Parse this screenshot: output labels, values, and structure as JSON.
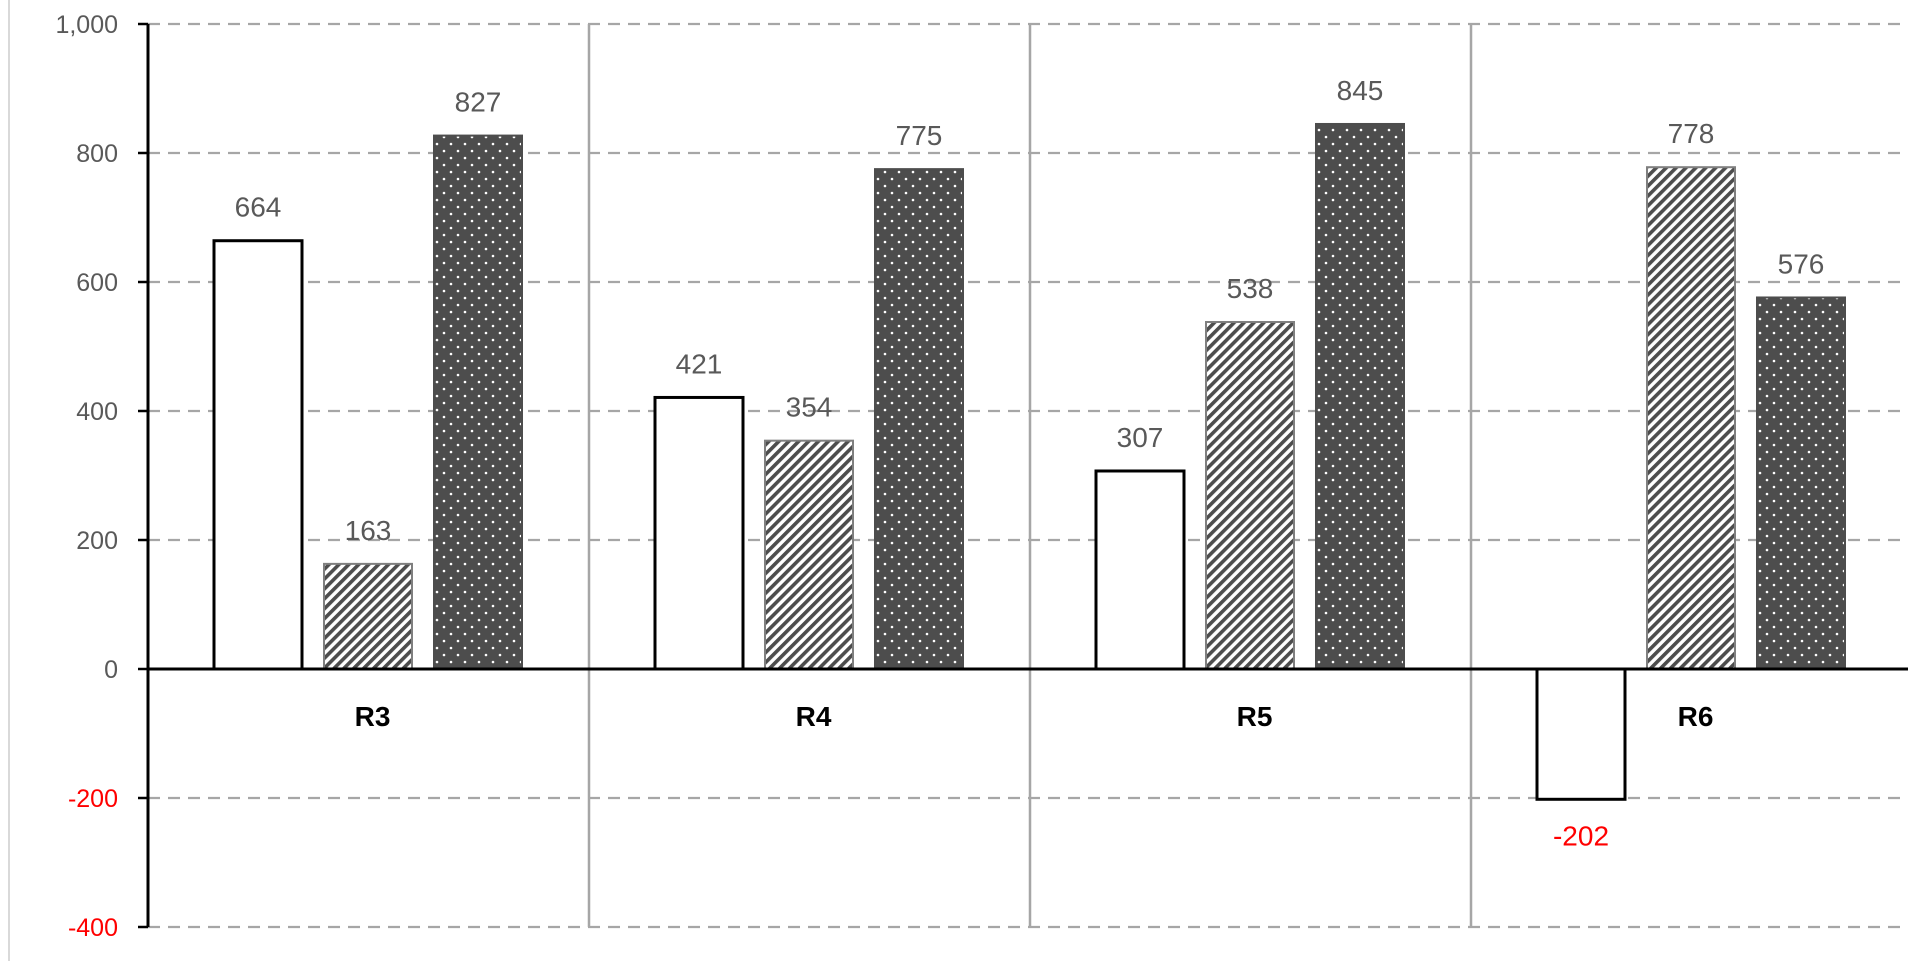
{
  "chart_data": {
    "type": "bar",
    "categories": [
      "R3",
      "R4",
      "R5",
      "R6"
    ],
    "series": [
      {
        "values": [
          664,
          421,
          307,
          -202
        ],
        "style": "white-outline"
      },
      {
        "values": [
          163,
          354,
          538,
          778
        ],
        "style": "diagonal-hatch"
      },
      {
        "values": [
          827,
          775,
          845,
          576
        ],
        "style": "dark-dotted"
      }
    ],
    "yticks": [
      "1,000",
      "800",
      "600",
      "400",
      "200",
      "0",
      "-200",
      "-400"
    ],
    "ylim": [
      -400,
      1000
    ],
    "grid": "dashed-horizontal",
    "negative_color": "#ff0000",
    "colors": {
      "dark": "#4d4d4d",
      "grid": "#a6a6a6",
      "label": "#595959"
    }
  }
}
